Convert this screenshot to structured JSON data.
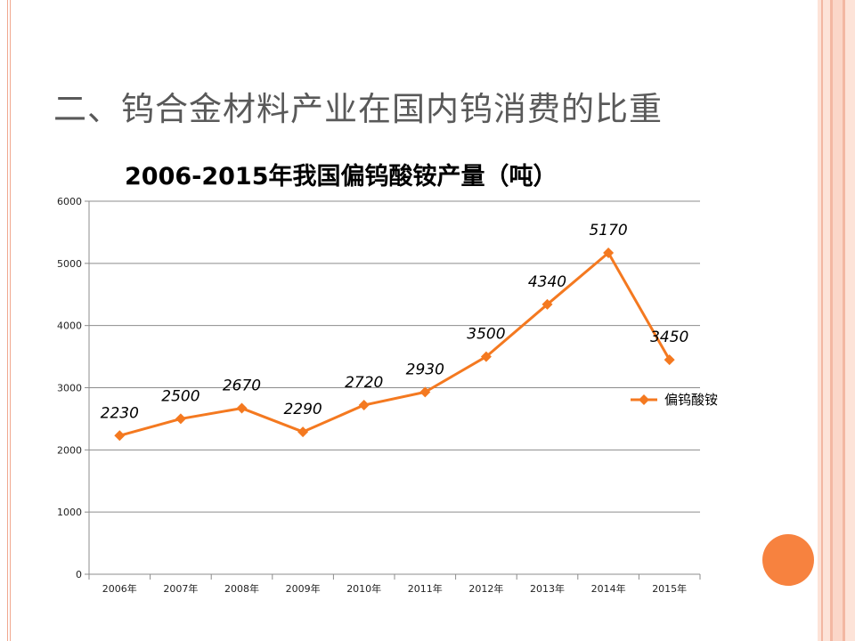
{
  "slide": {
    "title": "二、钨合金材料产业在国内钨消费的比重"
  },
  "colors": {
    "series": "#f47920",
    "frame": "#f3b7a2",
    "circle": "#f7823f"
  },
  "chart_data": {
    "type": "line",
    "title": "2006-2015年我国偏钨酸铵产量（吨）",
    "categories": [
      "2006年",
      "2007年",
      "2008年",
      "2009年",
      "2010年",
      "2011年",
      "2012年",
      "2013年",
      "2014年",
      "2015年"
    ],
    "series": [
      {
        "name": "偏钨酸铵",
        "values": [
          2230,
          2500,
          2670,
          2290,
          2720,
          2930,
          3500,
          4340,
          5170,
          3450
        ]
      }
    ],
    "data_labels": [
      "2230",
      "2500",
      "2670",
      "2290",
      "2720",
      "2930",
      "3500",
      "4340",
      "5170",
      "3450"
    ],
    "y_ticks": [
      "0",
      "1000",
      "2000",
      "3000",
      "4000",
      "5000",
      "6000"
    ],
    "ylim": [
      0,
      6000
    ],
    "grid": true,
    "legend": "right",
    "marker": "diamond"
  }
}
